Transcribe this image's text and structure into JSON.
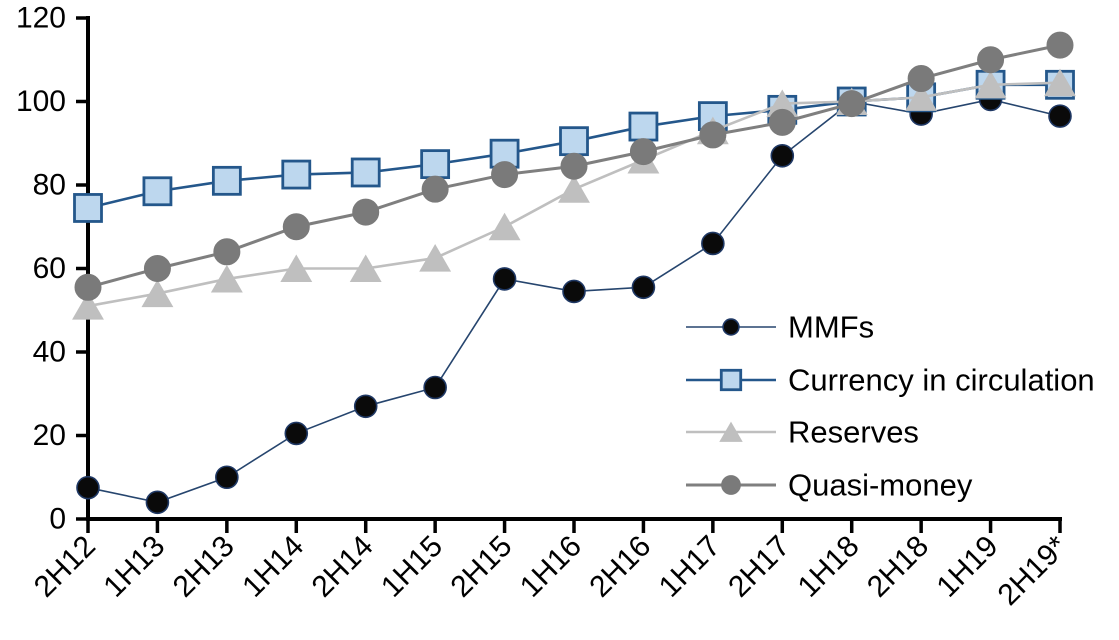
{
  "chart_data": {
    "type": "line",
    "title": "",
    "xlabel": "",
    "ylabel": "",
    "grid": false,
    "legend_position": "inside-right",
    "ylim": [
      0,
      120
    ],
    "ytick_step": 20,
    "ytick_labels": [
      "0",
      "20",
      "40",
      "60",
      "80",
      "100",
      "120"
    ],
    "categories": [
      "2H12",
      "1H13",
      "2H13",
      "1H14",
      "2H14",
      "1H15",
      "2H15",
      "1H16",
      "2H16",
      "1H17",
      "2H17",
      "1H18",
      "2H18",
      "1H19",
      "2H19*"
    ],
    "series": [
      {
        "name": "MMFs",
        "marker": "circle",
        "values": [
          7.5,
          4,
          10,
          20.5,
          27,
          31.5,
          57.5,
          54.5,
          55.5,
          66,
          87,
          100,
          97,
          100.5,
          96.5
        ],
        "line_color": "#26456E",
        "line_width": 1.6,
        "marker_fill": "#0A0A0A",
        "marker_stroke": "#1F3864",
        "marker_stroke_width": 1.6,
        "marker_size": 22
      },
      {
        "name": "Currency in circulation",
        "marker": "square",
        "values": [
          74.5,
          78.5,
          81,
          82.5,
          83,
          85,
          87.5,
          90.5,
          94,
          96.5,
          98,
          100,
          101,
          104,
          104
        ],
        "line_color": "#24578B",
        "line_width": 2.6,
        "marker_fill": "#BDD7EE",
        "marker_stroke": "#24578B",
        "marker_stroke_width": 2.8,
        "marker_size": 27
      },
      {
        "name": "Reserves",
        "marker": "triangle",
        "values": [
          51,
          54,
          57.5,
          60,
          60,
          62.5,
          70,
          79,
          86,
          93,
          99.5,
          100,
          101,
          104,
          104.5
        ],
        "line_color": "#BFBFBF",
        "line_width": 2.6,
        "marker_fill": "#BFBFBF",
        "marker_stroke": "#BFBFBF",
        "marker_stroke_width": 1,
        "marker_size": 29
      },
      {
        "name": "Quasi-money",
        "marker": "circle",
        "values": [
          55.5,
          60,
          64,
          70,
          73.5,
          79,
          82.5,
          84.5,
          88,
          92,
          95,
          99.5,
          105.5,
          110,
          113.5
        ],
        "line_color": "#7F7F7F",
        "line_width": 3,
        "marker_fill": "#7A7A7A",
        "marker_stroke": "#7A7A7A",
        "marker_stroke_width": 1,
        "marker_size": 26
      }
    ]
  },
  "colors": {
    "axis": "#000000",
    "text": "#000000",
    "background": "#FFFFFF"
  }
}
